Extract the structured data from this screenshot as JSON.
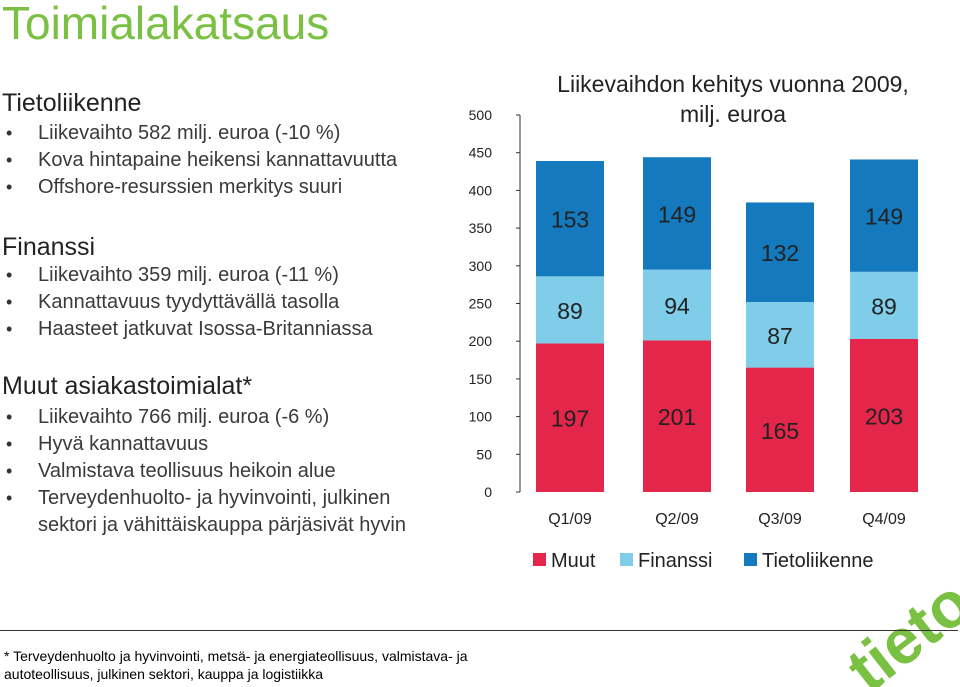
{
  "page": {
    "title": "Toimialakatsaus",
    "sections": [
      {
        "heading": "Tietoliikenne",
        "bullets": [
          "Liikevaihto 582 milj. euroa (-10 %)",
          "Kova hintapaine heikensi kannattavuutta",
          "Offshore-resurssien merkitys suuri"
        ]
      },
      {
        "heading": "Finanssi",
        "bullets": [
          "Liikevaihto 359 milj. euroa (-11 %)",
          "Kannattavuus tyydyttävällä tasolla",
          "Haasteet jatkuvat Isossa-Britanniassa"
        ]
      },
      {
        "heading": "Muut asiakastoimialat*",
        "bullets": [
          "Liikevaihto 766 milj. euroa (-6 %)",
          "Hyvä kannattavuus",
          "Valmistava teollisuus heikoin alue",
          "Terveydenhuolto- ja hyvinvointi, julkinen",
          "sektori ja vähittäiskauppa pärjäsivät hyvin"
        ]
      }
    ],
    "footnote_lines": [
      "* Terveydenhuolto ja hyvinvointi, metsä- ja energiateollisuus, valmistava- ja",
      "autoteollisuus, julkinen sektori, kauppa ja logistiikka"
    ],
    "logo_text": "tieto",
    "colors": {
      "title": "#7ac143",
      "logo": "#7ac143"
    }
  },
  "chart_data": {
    "type": "bar",
    "stacked": true,
    "title": "Liikevaihdon kehitys vuonna 2009, milj. euroa",
    "categories": [
      "Q1/09",
      "Q2/09",
      "Q3/09",
      "Q4/09"
    ],
    "series": [
      {
        "name": "Muut",
        "color": "#e3264a",
        "values": [
          197,
          201,
          165,
          203
        ]
      },
      {
        "name": "Finanssi",
        "color": "#7fcde8",
        "values": [
          89,
          94,
          87,
          89
        ]
      },
      {
        "name": "Tietoliikenne",
        "color": "#1579bd",
        "values": [
          153,
          149,
          132,
          149
        ]
      }
    ],
    "ylim": [
      0,
      500
    ],
    "yticks": [
      0,
      50,
      100,
      150,
      200,
      250,
      300,
      350,
      400,
      450,
      500
    ],
    "legend_position": "bottom"
  }
}
